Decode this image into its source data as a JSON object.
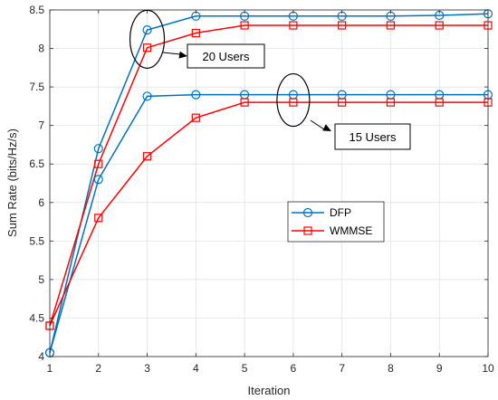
{
  "chart_data": {
    "type": "line",
    "xlabel": "Iteration",
    "ylabel": "Sum Rate (bits/Hz/s)",
    "xlim": [
      1,
      10
    ],
    "ylim": [
      4,
      8.5
    ],
    "xticks": [
      1,
      2,
      3,
      4,
      5,
      6,
      7,
      8,
      9,
      10
    ],
    "yticks": [
      4,
      4.5,
      5,
      5.5,
      6,
      6.5,
      7,
      7.5,
      8,
      8.5
    ],
    "grid": true,
    "legend_position": "center-right",
    "x": [
      1,
      2,
      3,
      4,
      5,
      6,
      7,
      8,
      9,
      10
    ],
    "series": [
      {
        "name": "DFP",
        "group": "20 Users",
        "marker": "circle",
        "color": "#0072BD",
        "values": [
          4.05,
          6.7,
          8.24,
          8.42,
          8.42,
          8.42,
          8.42,
          8.42,
          8.43,
          8.45
        ]
      },
      {
        "name": "WMMSE",
        "group": "20 Users",
        "marker": "square",
        "color": "#FF0000",
        "values": [
          4.4,
          6.5,
          8.01,
          8.2,
          8.3,
          8.3,
          8.3,
          8.3,
          8.3,
          8.3
        ]
      },
      {
        "name": "DFP",
        "group": "15 Users",
        "marker": "circle",
        "color": "#0072BD",
        "values": [
          4.05,
          6.3,
          7.38,
          7.4,
          7.4,
          7.4,
          7.4,
          7.4,
          7.4,
          7.4
        ]
      },
      {
        "name": "WMMSE",
        "group": "15 Users",
        "marker": "square",
        "color": "#FF0000",
        "values": [
          4.4,
          5.8,
          6.6,
          7.1,
          7.3,
          7.3,
          7.3,
          7.3,
          7.3,
          7.3
        ]
      }
    ],
    "legend": [
      {
        "label": "DFP",
        "marker": "circle",
        "color": "#0072BD"
      },
      {
        "label": "WMMSE",
        "marker": "square",
        "color": "#FF0000"
      }
    ],
    "annotations": [
      {
        "text": "20 Users",
        "ellipse_center": [
          3,
          8.12
        ]
      },
      {
        "text": "15 Users",
        "ellipse_center": [
          6,
          7.33
        ]
      }
    ]
  }
}
